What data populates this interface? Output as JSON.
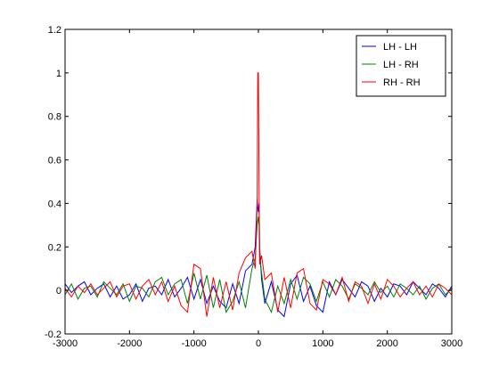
{
  "chart_data": {
    "type": "line",
    "title": "",
    "xlabel": "",
    "ylabel": "",
    "xlim": [
      -3000,
      3000
    ],
    "ylim": [
      -0.2,
      1.2
    ],
    "xticks": [
      -3000,
      -2000,
      -1000,
      0,
      1000,
      2000,
      3000
    ],
    "yticks": [
      -0.2,
      0,
      0.2,
      0.4,
      0.6,
      0.8,
      1,
      1.2
    ],
    "xtick_labels": [
      "-3000",
      "-2000",
      "-1000",
      "0",
      "1000",
      "2000",
      "3000"
    ],
    "ytick_labels": [
      "-0.2",
      "0",
      "0.2",
      "0.4",
      "0.6",
      "0.8",
      "1",
      "1.2"
    ],
    "grid": false,
    "legend_position": "top-right",
    "series": [
      {
        "name": "LH - LH",
        "color": "#0000ff",
        "x": [
          -3000,
          -2900,
          -2800,
          -2700,
          -2600,
          -2500,
          -2400,
          -2300,
          -2200,
          -2100,
          -2000,
          -1900,
          -1800,
          -1700,
          -1600,
          -1500,
          -1400,
          -1300,
          -1200,
          -1100,
          -1000,
          -900,
          -800,
          -700,
          -600,
          -500,
          -400,
          -300,
          -200,
          -100,
          -50,
          -20,
          -10,
          0,
          10,
          20,
          50,
          100,
          200,
          300,
          400,
          500,
          600,
          700,
          800,
          900,
          1000,
          1100,
          1200,
          1300,
          1400,
          1500,
          1600,
          1700,
          1800,
          1900,
          2000,
          2100,
          2200,
          2300,
          2400,
          2500,
          2600,
          2700,
          2800,
          2900,
          3000
        ],
        "y": [
          0.03,
          -0.01,
          0.02,
          0.04,
          -0.02,
          0.01,
          0.03,
          -0.03,
          0.02,
          -0.04,
          -0.02,
          0.03,
          -0.05,
          0.01,
          0.02,
          -0.02,
          0.05,
          -0.03,
          0.01,
          0.06,
          -0.04,
          0.05,
          -0.06,
          0.02,
          -0.05,
          -0.08,
          0.03,
          -0.06,
          0.09,
          0.12,
          0.2,
          0.42,
          0.38,
          0.36,
          0.4,
          0.2,
          0.05,
          -0.06,
          0.04,
          -0.09,
          -0.12,
          0.03,
          0.07,
          -0.05,
          0.02,
          -0.07,
          -0.1,
          0.04,
          -0.02,
          0.05,
          0.01,
          -0.03,
          0.04,
          0.02,
          -0.05,
          0.01,
          -0.03,
          0.03,
          0.02,
          -0.02,
          0.04,
          0.01,
          -0.02,
          0.03,
          0.01,
          -0.03,
          0.02
        ]
      },
      {
        "name": "LH - RH",
        "color": "#008000",
        "x": [
          -3000,
          -2900,
          -2800,
          -2700,
          -2600,
          -2500,
          -2400,
          -2300,
          -2200,
          -2100,
          -2000,
          -1900,
          -1800,
          -1700,
          -1600,
          -1500,
          -1400,
          -1300,
          -1200,
          -1100,
          -1000,
          -900,
          -800,
          -700,
          -600,
          -500,
          -400,
          -300,
          -200,
          -100,
          -50,
          -20,
          -10,
          0,
          10,
          20,
          50,
          100,
          200,
          300,
          400,
          500,
          600,
          700,
          800,
          900,
          1000,
          1100,
          1200,
          1300,
          1400,
          1500,
          1600,
          1700,
          1800,
          1900,
          2000,
          2100,
          2200,
          2300,
          2400,
          2500,
          2600,
          2700,
          2800,
          2900,
          3000
        ],
        "y": [
          -0.02,
          0.03,
          -0.04,
          0.01,
          0.02,
          -0.03,
          0.04,
          0.01,
          -0.02,
          0.03,
          -0.05,
          0.02,
          0.01,
          -0.03,
          0.04,
          0.06,
          -0.02,
          0.03,
          0.05,
          -0.06,
          0.08,
          -0.04,
          0.07,
          -0.08,
          0.05,
          -0.1,
          -0.05,
          0.04,
          -0.08,
          0.1,
          0.15,
          0.3,
          0.32,
          0.34,
          0.3,
          0.15,
          0.08,
          -0.04,
          -0.1,
          0.02,
          -0.06,
          0.05,
          -0.04,
          0.06,
          0.03,
          -0.05,
          0.04,
          -0.03,
          0.05,
          0.02,
          -0.04,
          0.03,
          0.01,
          -0.02,
          0.04,
          -0.01,
          0.02,
          -0.03,
          0.03,
          0.01,
          -0.02,
          0.02,
          -0.04,
          0.01,
          0.03,
          -0.02,
          0.01
        ]
      },
      {
        "name": "RH - RH",
        "color": "#ff0000",
        "x": [
          -3000,
          -2900,
          -2800,
          -2700,
          -2600,
          -2500,
          -2400,
          -2300,
          -2200,
          -2100,
          -2000,
          -1900,
          -1800,
          -1700,
          -1600,
          -1500,
          -1400,
          -1300,
          -1200,
          -1100,
          -1000,
          -900,
          -800,
          -700,
          -600,
          -500,
          -400,
          -300,
          -200,
          -100,
          -50,
          -20,
          -10,
          0,
          10,
          20,
          50,
          100,
          200,
          300,
          400,
          500,
          600,
          700,
          800,
          900,
          1000,
          1100,
          1200,
          1300,
          1400,
          1500,
          1600,
          1700,
          1800,
          1900,
          2000,
          2100,
          2200,
          2300,
          2400,
          2500,
          2600,
          2700,
          2800,
          2900,
          3000
        ],
        "y": [
          0.01,
          -0.03,
          0.02,
          -0.01,
          0.03,
          -0.02,
          0.01,
          0.04,
          -0.03,
          0.02,
          0.03,
          -0.04,
          0.02,
          0.05,
          -0.02,
          0.04,
          -0.05,
          0.02,
          -0.07,
          -0.1,
          0.12,
          0.1,
          -0.12,
          0.06,
          -0.08,
          0.04,
          -0.09,
          0.08,
          0.15,
          0.18,
          0.1,
          0.4,
          1.0,
          1.0,
          0.5,
          0.12,
          0.16,
          0.05,
          0.08,
          -0.1,
          0.06,
          -0.08,
          0.08,
          0.1,
          -0.06,
          -0.09,
          0.05,
          0.03,
          -0.02,
          0.06,
          -0.05,
          0.04,
          0.02,
          -0.06,
          0.03,
          -0.04,
          0.05,
          0.02,
          -0.03,
          0.01,
          0.04,
          -0.02,
          0.02,
          -0.03,
          0.03,
          0.01,
          -0.02
        ]
      }
    ]
  }
}
